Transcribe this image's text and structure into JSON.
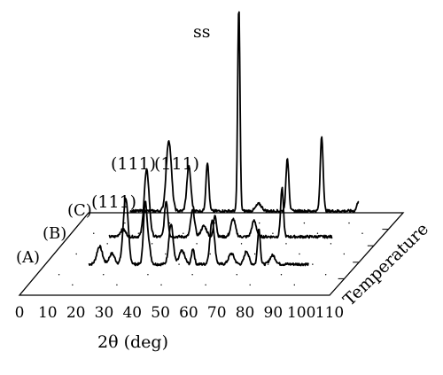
{
  "chart_data": {
    "type": "line",
    "title": "",
    "xlabel": "2θ (deg)",
    "zlabel": "Temperature",
    "x_ticks": [
      0,
      10,
      20,
      30,
      40,
      50,
      60,
      70,
      80,
      90,
      100,
      110
    ],
    "x_tick_labels": [
      "0",
      "10",
      "20",
      "30",
      "40",
      "50",
      "60",
      "70",
      "80",
      "90",
      "100",
      "110"
    ],
    "xlim": [
      0,
      110
    ],
    "grid": false,
    "annotations": [
      {
        "text": "(111)",
        "series": "C",
        "x": 43
      },
      {
        "text": "(111)",
        "series": "B",
        "x": 43
      },
      {
        "text": "(111)",
        "series": "A",
        "x": 43
      },
      {
        "text": "ss",
        "series": "C",
        "x": 68
      }
    ],
    "series": [
      {
        "name": "(A)",
        "baseline_index": 0,
        "peaks": [
          {
            "x": 34,
            "h": 20,
            "w": 1.0
          },
          {
            "x": 38.5,
            "h": 12,
            "w": 1.0
          },
          {
            "x": 43.5,
            "h": 75,
            "w": 0.9
          },
          {
            "x": 50.5,
            "h": 55,
            "w": 0.6
          },
          {
            "x": 51.5,
            "h": 30,
            "w": 0.8
          },
          {
            "x": 60,
            "h": 45,
            "w": 0.8
          },
          {
            "x": 64,
            "h": 15,
            "w": 1.0
          },
          {
            "x": 68,
            "h": 18,
            "w": 0.5
          },
          {
            "x": 75,
            "h": 50,
            "w": 0.8
          },
          {
            "x": 82,
            "h": 12,
            "w": 1.0
          },
          {
            "x": 87.5,
            "h": 15,
            "w": 0.8
          },
          {
            "x": 92,
            "h": 40,
            "w": 0.5
          },
          {
            "x": 97,
            "h": 10,
            "w": 1.0
          }
        ]
      },
      {
        "name": "(B)",
        "baseline_index": 1,
        "peaks": [
          {
            "x": 35,
            "h": 8,
            "w": 1.0
          },
          {
            "x": 43.5,
            "h": 75,
            "w": 0.9
          },
          {
            "x": 50.5,
            "h": 40,
            "w": 0.6
          },
          {
            "x": 60,
            "h": 30,
            "w": 0.7
          },
          {
            "x": 64,
            "h": 12,
            "w": 1.0
          },
          {
            "x": 68,
            "h": 25,
            "w": 0.5
          },
          {
            "x": 74.5,
            "h": 20,
            "w": 0.8
          },
          {
            "x": 82,
            "h": 18,
            "w": 0.8
          },
          {
            "x": 92,
            "h": 55,
            "w": 0.5
          }
        ]
      },
      {
        "name": "(C)",
        "baseline_index": 2,
        "peaks": [
          {
            "x": 43.5,
            "h": 80,
            "w": 0.9
          },
          {
            "x": 50.5,
            "h": 50,
            "w": 0.7
          },
          {
            "x": 57,
            "h": 55,
            "w": 0.5
          },
          {
            "x": 68,
            "h": 230,
            "w": 0.4
          },
          {
            "x": 75,
            "h": 8,
            "w": 1.0
          },
          {
            "x": 85,
            "h": 60,
            "w": 0.5
          },
          {
            "x": 97,
            "h": 85,
            "w": 0.5
          },
          {
            "x": 110,
            "h": 12,
            "w": 0.6
          }
        ]
      }
    ]
  }
}
